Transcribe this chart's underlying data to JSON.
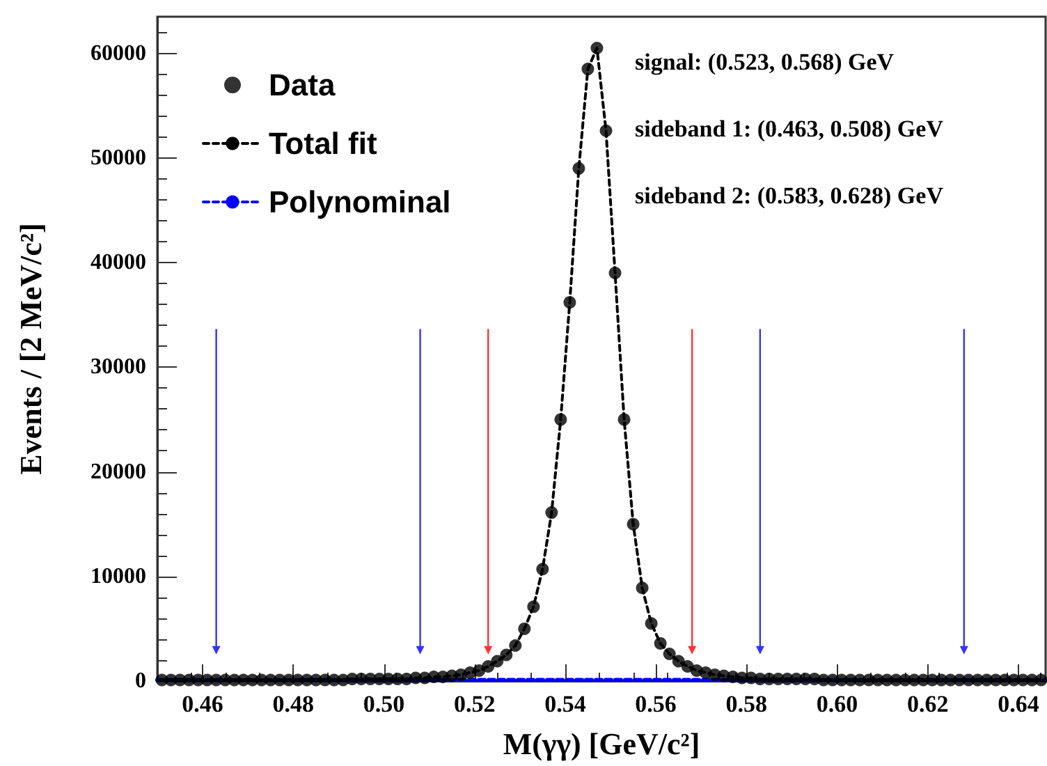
{
  "chart_data": {
    "type": "scatter",
    "xlabel": "M(γγ) [GeV/c²]",
    "ylabel": "Events / [2 MeV/c²]",
    "xlim": [
      0.45,
      0.646
    ],
    "ylim": [
      0,
      63500
    ],
    "xticks": [
      0.46,
      0.48,
      {
        "value": 0.5,
        "label": "0.50"
      },
      0.52,
      0.54,
      0.56,
      0.58,
      {
        "value": 0.6,
        "label": "0.60"
      },
      0.62,
      0.64
    ],
    "yticks": [
      0,
      10000,
      20000,
      30000,
      40000,
      50000,
      60000
    ],
    "grid": false,
    "legend": "top left",
    "annotations": [
      "signal: (0.523, 0.568) GeV",
      "sideband 1: (0.463, 0.508) GeV",
      "sideband 2: (0.583, 0.628) GeV"
    ],
    "ref_lines": [
      {
        "axis": "x",
        "value": 0.463,
        "color": "#3333ff"
      },
      {
        "axis": "x",
        "value": 0.508,
        "color": "#3333ff"
      },
      {
        "axis": "x",
        "value": 0.523,
        "color": "#ff3333"
      },
      {
        "axis": "x",
        "value": 0.568,
        "color": "#ff3333"
      },
      {
        "axis": "x",
        "value": 0.583,
        "color": "#3333ff"
      },
      {
        "axis": "x",
        "value": 0.628,
        "color": "#3333ff"
      }
    ],
    "x": [
      0.451,
      0.453,
      0.455,
      0.457,
      0.459,
      0.461,
      0.463,
      0.465,
      0.467,
      0.469,
      0.471,
      0.473,
      0.475,
      0.477,
      0.479,
      0.481,
      0.483,
      0.485,
      0.487,
      0.489,
      0.491,
      0.493,
      0.495,
      0.497,
      0.499,
      0.501,
      0.503,
      0.505,
      0.507,
      0.509,
      0.511,
      0.513,
      0.515,
      0.517,
      0.519,
      0.521,
      0.523,
      0.525,
      0.527,
      0.529,
      0.531,
      0.533,
      0.535,
      0.537,
      0.539,
      0.541,
      0.543,
      0.545,
      0.547,
      0.549,
      0.551,
      0.553,
      0.555,
      0.557,
      0.559,
      0.561,
      0.563,
      0.565,
      0.567,
      0.569,
      0.571,
      0.573,
      0.575,
      0.577,
      0.579,
      0.581,
      0.583,
      0.585,
      0.587,
      0.589,
      0.591,
      0.593,
      0.595,
      0.597,
      0.599,
      0.601,
      0.603,
      0.605,
      0.607,
      0.609,
      0.611,
      0.613,
      0.615,
      0.617,
      0.619,
      0.621,
      0.623,
      0.625,
      0.627,
      0.629,
      0.631,
      0.633,
      0.635,
      0.637,
      0.639,
      0.641,
      0.643,
      0.645
    ],
    "series": [
      {
        "name": "Data",
        "color": "#000000",
        "marker": "circle",
        "values": [
          100,
          100,
          100,
          100,
          100,
          100,
          100,
          100,
          100,
          100,
          100,
          100,
          100,
          100,
          100,
          100,
          100,
          100,
          100,
          100,
          100,
          200,
          200,
          200,
          200,
          200,
          200,
          200,
          300,
          300,
          400,
          400,
          500,
          600,
          800,
          1000,
          1400,
          1900,
          2500,
          3400,
          5000,
          7100,
          10700,
          16100,
          25000,
          36200,
          49000,
          58500,
          60500,
          52600,
          39000,
          25000,
          15000,
          8900,
          5500,
          3600,
          2600,
          1900,
          1400,
          1000,
          800,
          600,
          500,
          400,
          300,
          300,
          200,
          200,
          200,
          200,
          200,
          200,
          200,
          100,
          100,
          100,
          100,
          100,
          100,
          100,
          100,
          100,
          100,
          100,
          100,
          100,
          100,
          100,
          100,
          100,
          100,
          100,
          100,
          100,
          100,
          100,
          100,
          100
        ]
      },
      {
        "name": "Total fit",
        "type": "line",
        "color": "#000000",
        "marker": "none",
        "line_style": "dashed",
        "values": [
          100,
          100,
          100,
          100,
          100,
          100,
          100,
          100,
          100,
          100,
          100,
          100,
          100,
          100,
          100,
          100,
          100,
          100,
          100,
          100,
          100,
          200,
          200,
          200,
          200,
          200,
          200,
          200,
          300,
          300,
          400,
          400,
          500,
          600,
          800,
          1000,
          1400,
          1900,
          2500,
          3400,
          5000,
          7100,
          10700,
          16100,
          25000,
          36200,
          49000,
          58500,
          60500,
          52600,
          39000,
          25000,
          15000,
          8900,
          5500,
          3600,
          2600,
          1900,
          1400,
          1000,
          800,
          600,
          500,
          400,
          300,
          300,
          200,
          200,
          200,
          200,
          200,
          200,
          200,
          100,
          100,
          100,
          100,
          100,
          100,
          100,
          100,
          100,
          100,
          100,
          100,
          100,
          100,
          100,
          100,
          100,
          100,
          100,
          100,
          100,
          100,
          100,
          100,
          100
        ]
      },
      {
        "name": "Polynominal",
        "type": "line",
        "color": "#0000ff",
        "marker": "none",
        "line_style": "dashed",
        "x": [
          0.45,
          0.646
        ],
        "values": [
          100,
          100
        ]
      }
    ]
  }
}
